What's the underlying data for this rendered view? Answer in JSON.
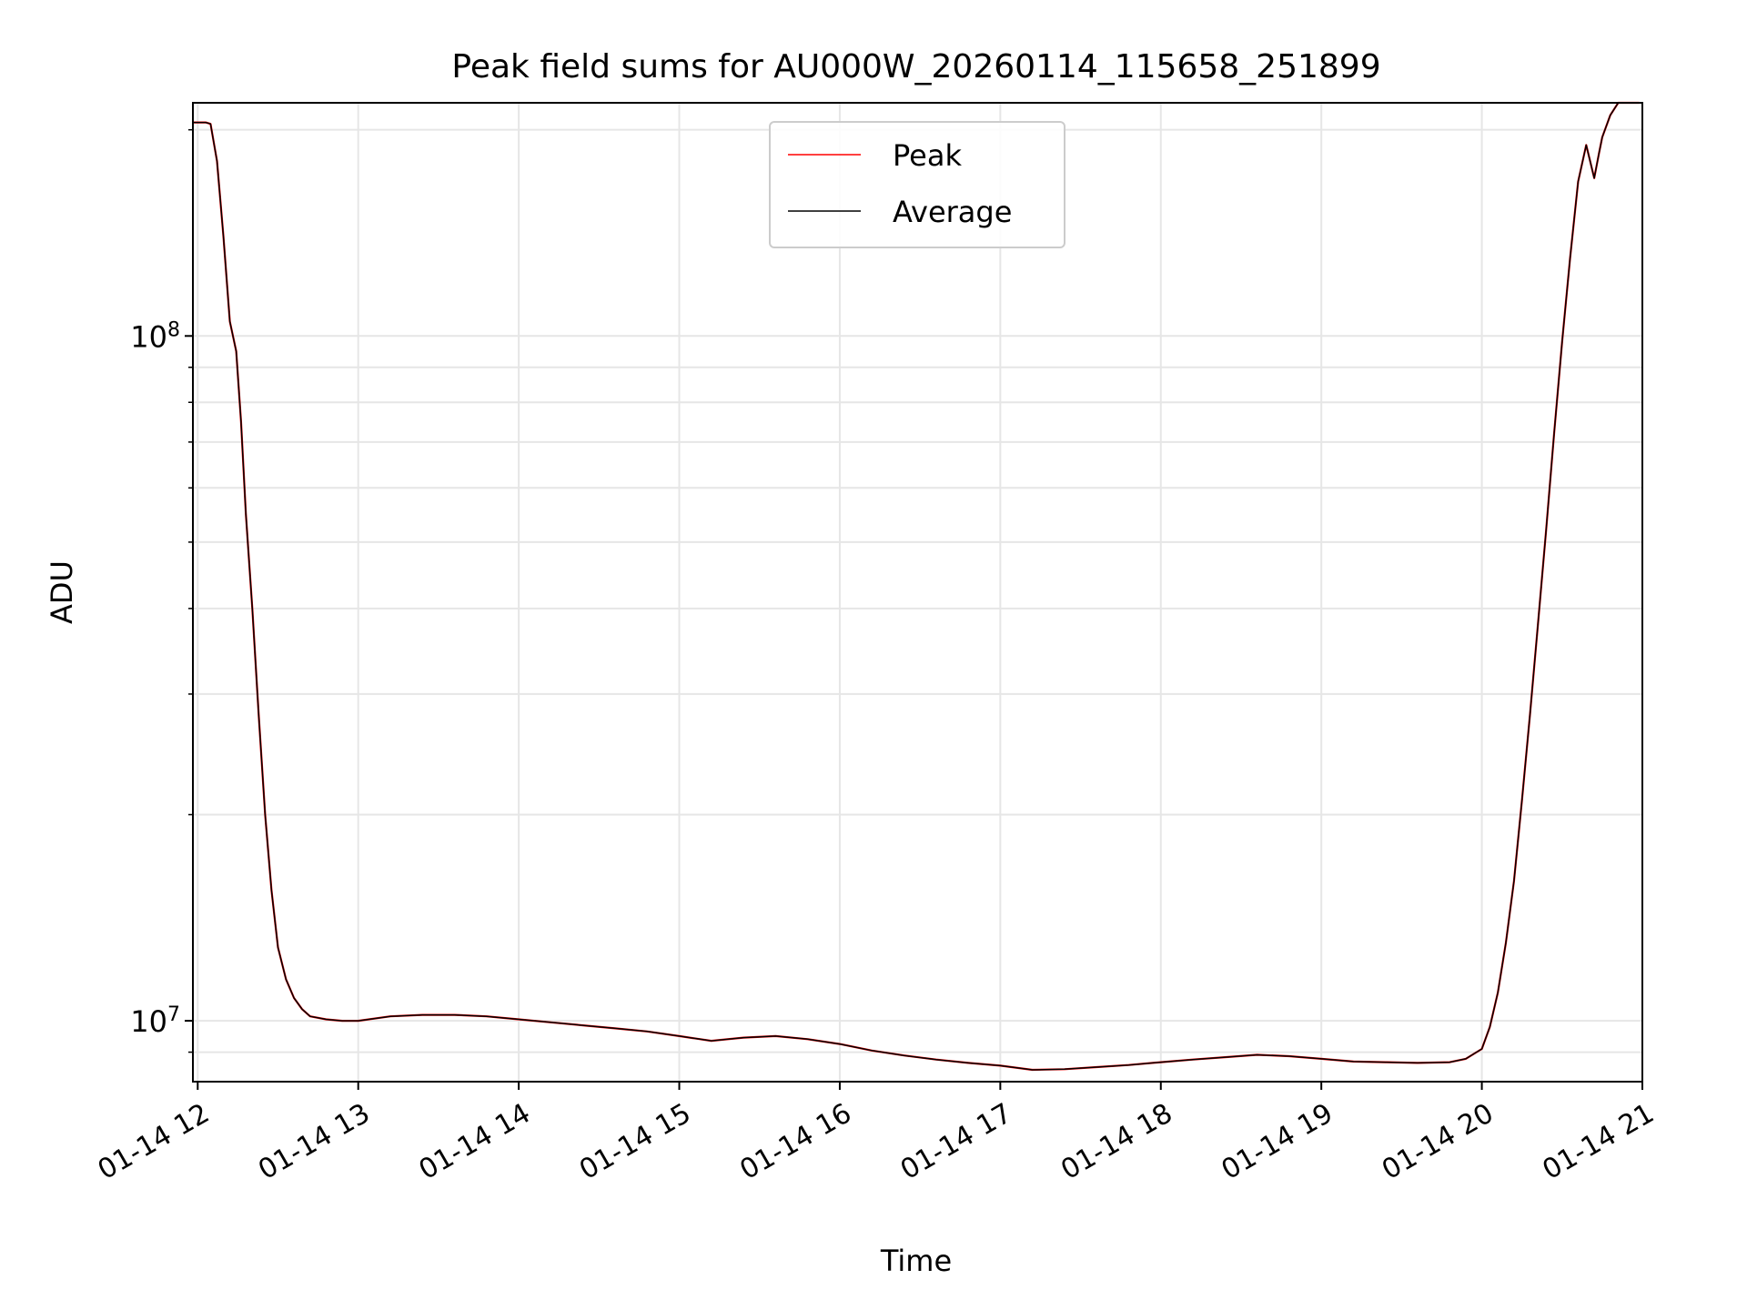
{
  "chart_data": {
    "type": "line",
    "title": "Peak field sums for AU000W_20260114_115658_251899",
    "xlabel": "Time",
    "ylabel": "ADU",
    "yscale": "log",
    "grid": true,
    "legend_position": "top-center",
    "x_unit": "hours (2026-01-14)",
    "xlim": [
      11.97,
      21.0
    ],
    "ylim": [
      8150000,
      219000000
    ],
    "x_tick_values": [
      12,
      13,
      14,
      15,
      16,
      17,
      18,
      19,
      20,
      21
    ],
    "x_tick_labels": [
      "01-14 12",
      "01-14 13",
      "01-14 14",
      "01-14 15",
      "01-14 16",
      "01-14 17",
      "01-14 18",
      "01-14 19",
      "01-14 20",
      "01-14 21"
    ],
    "y_major_ticks": [
      {
        "value": 10000000,
        "base": "10",
        "exp": "7"
      },
      {
        "value": 100000000,
        "base": "10",
        "exp": "8"
      }
    ],
    "y_minor_ticks": [
      9000000,
      20000000,
      30000000,
      40000000,
      50000000,
      60000000,
      70000000,
      80000000,
      90000000,
      200000000
    ],
    "series": [
      {
        "name": "Peak",
        "color": "#ff0000",
        "x": [
          11.97,
          12.05,
          12.08,
          12.12,
          12.16,
          12.2,
          12.24,
          12.27,
          12.3,
          12.34,
          12.38,
          12.42,
          12.46,
          12.5,
          12.55,
          12.6,
          12.65,
          12.7,
          12.8,
          12.9,
          13.0,
          13.2,
          13.4,
          13.6,
          13.8,
          14.0,
          14.2,
          14.4,
          14.6,
          14.8,
          15.0,
          15.2,
          15.4,
          15.6,
          15.8,
          16.0,
          16.2,
          16.4,
          16.6,
          16.8,
          17.0,
          17.2,
          17.4,
          17.6,
          17.8,
          18.0,
          18.2,
          18.4,
          18.6,
          18.8,
          19.0,
          19.2,
          19.4,
          19.6,
          19.8,
          19.9,
          20.0,
          20.05,
          20.1,
          20.15,
          20.2,
          20.25,
          20.3,
          20.35,
          20.4,
          20.45,
          20.5,
          20.55,
          20.6,
          20.65,
          20.7,
          20.73,
          20.75,
          20.8,
          20.85,
          20.9,
          20.98
        ],
        "values": [
          205000000,
          205000000,
          204000000,
          180000000,
          140000000,
          105000000,
          95000000,
          75000000,
          55000000,
          40000000,
          28000000,
          20000000,
          15500000,
          12800000,
          11500000,
          10800000,
          10400000,
          10150000,
          10050000,
          10000000,
          10000000,
          10150000,
          10200000,
          10200000,
          10150000,
          10050000,
          9950000,
          9850000,
          9750000,
          9650000,
          9500000,
          9350000,
          9450000,
          9500000,
          9400000,
          9250000,
          9050000,
          8900000,
          8780000,
          8680000,
          8600000,
          8480000,
          8500000,
          8560000,
          8620000,
          8700000,
          8780000,
          8850000,
          8920000,
          8880000,
          8800000,
          8720000,
          8700000,
          8680000,
          8700000,
          8800000,
          9100000,
          9800000,
          11000000,
          13000000,
          16000000,
          21000000,
          28000000,
          38000000,
          52000000,
          72000000,
          98000000,
          130000000,
          168000000,
          190000000,
          170000000,
          185000000,
          195000000,
          210000000,
          219000000,
          219000000,
          219000000
        ]
      },
      {
        "name": "Average",
        "color": "#000000",
        "x": [
          11.97,
          12.05,
          12.08,
          12.12,
          12.16,
          12.2,
          12.24,
          12.27,
          12.3,
          12.34,
          12.38,
          12.42,
          12.46,
          12.5,
          12.55,
          12.6,
          12.65,
          12.7,
          12.8,
          12.9,
          13.0,
          13.2,
          13.4,
          13.6,
          13.8,
          14.0,
          14.2,
          14.4,
          14.6,
          14.8,
          15.0,
          15.2,
          15.4,
          15.6,
          15.8,
          16.0,
          16.2,
          16.4,
          16.6,
          16.8,
          17.0,
          17.2,
          17.4,
          17.6,
          17.8,
          18.0,
          18.2,
          18.4,
          18.6,
          18.8,
          19.0,
          19.2,
          19.4,
          19.6,
          19.8,
          19.9,
          20.0,
          20.05,
          20.1,
          20.15,
          20.2,
          20.25,
          20.3,
          20.35,
          20.4,
          20.45,
          20.5,
          20.55,
          20.6,
          20.65,
          20.7,
          20.73,
          20.75,
          20.8,
          20.85,
          20.9,
          20.98
        ],
        "values": [
          205000000,
          205000000,
          204000000,
          180000000,
          140000000,
          105000000,
          95000000,
          75000000,
          55000000,
          40000000,
          28000000,
          20000000,
          15500000,
          12800000,
          11500000,
          10800000,
          10400000,
          10150000,
          10050000,
          10000000,
          10000000,
          10150000,
          10200000,
          10200000,
          10150000,
          10050000,
          9950000,
          9850000,
          9750000,
          9650000,
          9500000,
          9350000,
          9450000,
          9500000,
          9400000,
          9250000,
          9050000,
          8900000,
          8780000,
          8680000,
          8600000,
          8480000,
          8500000,
          8560000,
          8620000,
          8700000,
          8780000,
          8850000,
          8920000,
          8880000,
          8800000,
          8720000,
          8700000,
          8680000,
          8700000,
          8800000,
          9100000,
          9800000,
          11000000,
          13000000,
          16000000,
          21000000,
          28000000,
          38000000,
          52000000,
          72000000,
          98000000,
          130000000,
          168000000,
          190000000,
          170000000,
          185000000,
          195000000,
          210000000,
          219000000,
          219000000,
          219000000
        ]
      }
    ]
  }
}
